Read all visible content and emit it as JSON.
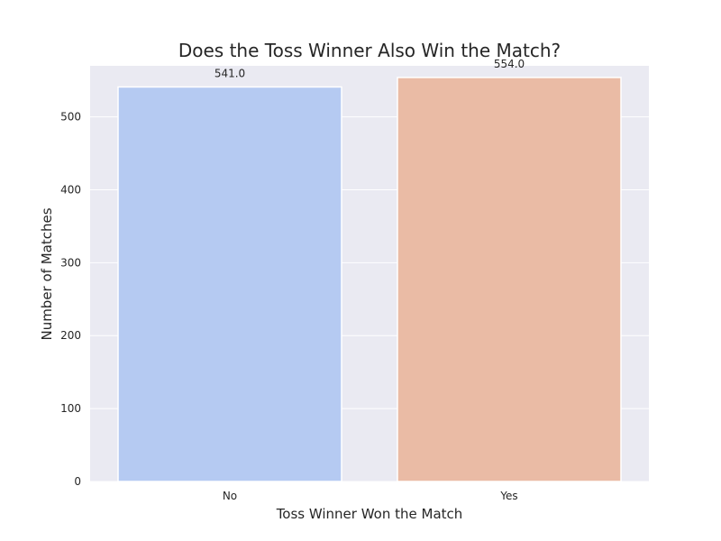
{
  "chart_data": {
    "type": "bar",
    "title": "Does the Toss Winner Also Win the Match?",
    "xlabel": "Toss Winner Won the Match",
    "ylabel": "Number of Matches",
    "categories": [
      "No",
      "Yes"
    ],
    "values": [
      541,
      554
    ],
    "data_labels": [
      "541.0",
      "554.0"
    ],
    "colors": [
      "#b5caf2",
      "#eabba5"
    ],
    "ylim": [
      0,
      570
    ],
    "yticks": [
      0,
      100,
      200,
      300,
      400,
      500
    ],
    "grid": true,
    "background": "#eaeaf2",
    "gridline_color": "#ffffff"
  }
}
